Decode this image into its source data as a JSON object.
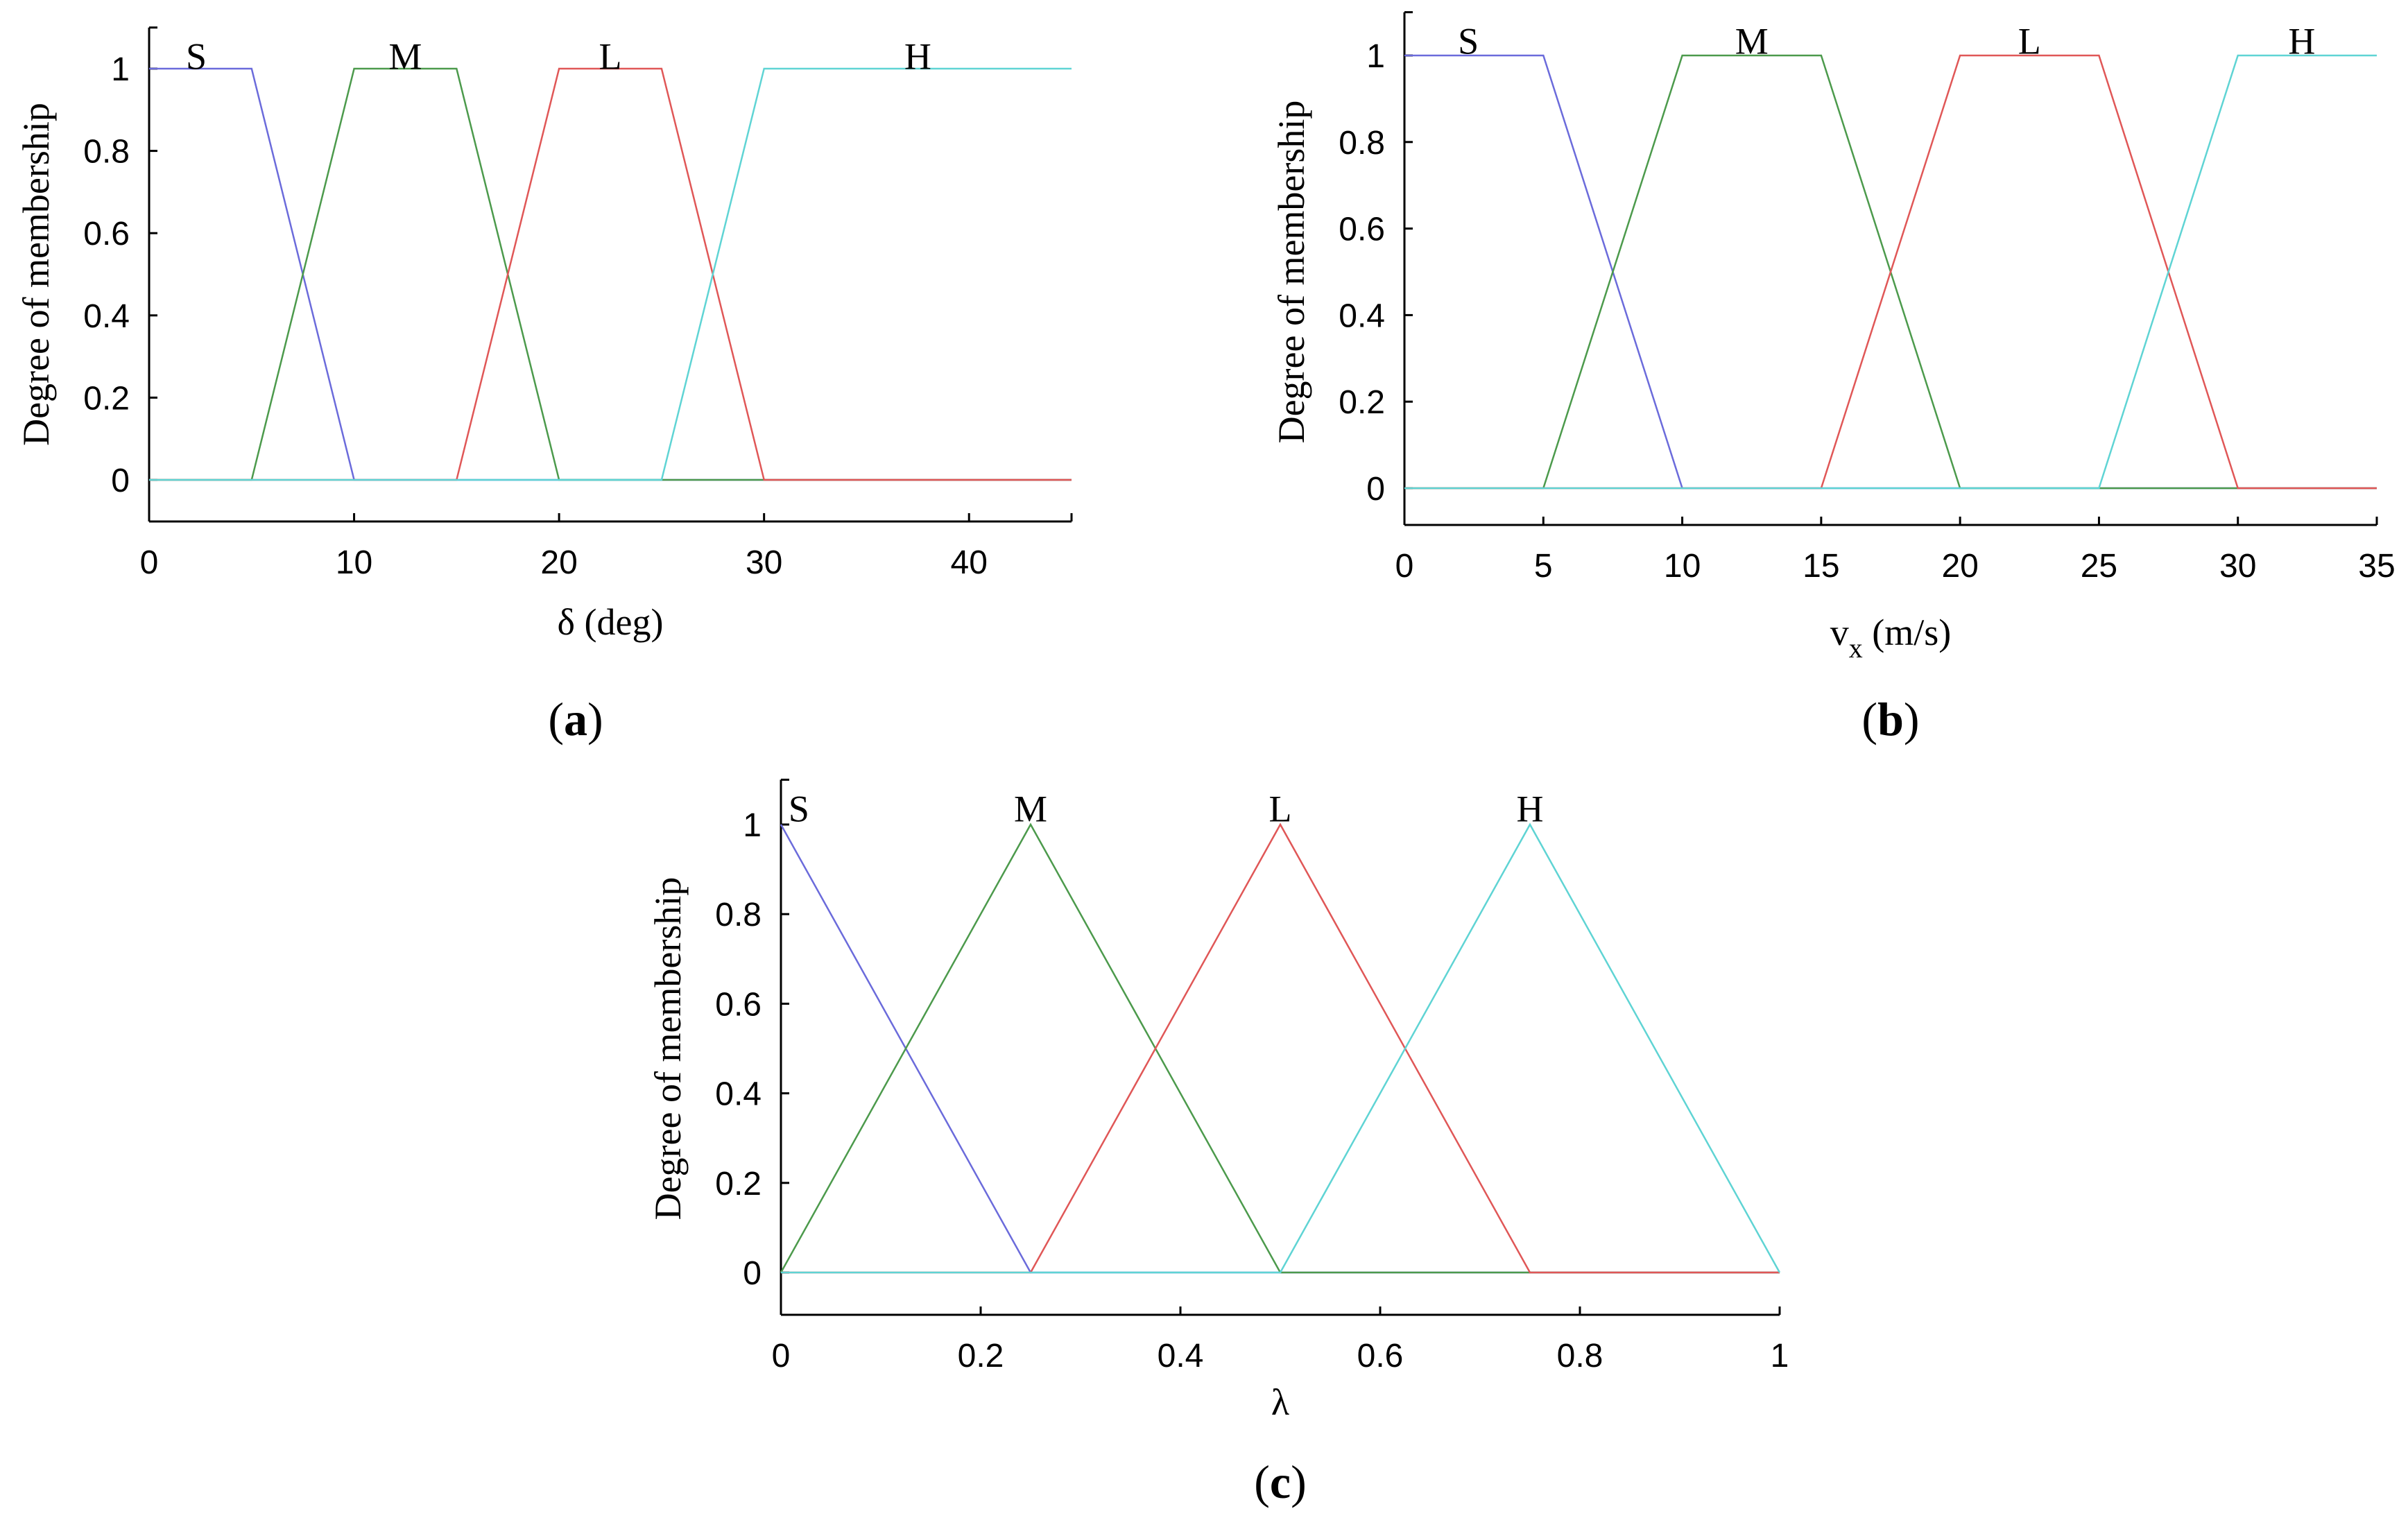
{
  "chart_data": [
    {
      "type": "line",
      "panel": "a",
      "panel_label": "a",
      "xlabel": "δ (deg)",
      "xlabel_sub": "",
      "xlabel_unit": "",
      "ylabel": "Degree of membership",
      "xlim": [
        0,
        45
      ],
      "ylim": [
        -0.1,
        1.1
      ],
      "xticks": [
        0,
        10,
        20,
        30,
        40
      ],
      "yticks": [
        0,
        0.2,
        0.4,
        0.6,
        0.8,
        1
      ],
      "series": [
        {
          "name": "S",
          "color": "#6b6bdb",
          "points": [
            [
              0,
              1
            ],
            [
              5,
              1
            ],
            [
              10,
              0
            ],
            [
              45,
              0
            ]
          ],
          "label_x": 2.3
        },
        {
          "name": "M",
          "color": "#4c9a4c",
          "points": [
            [
              0,
              0
            ],
            [
              5,
              0
            ],
            [
              10,
              1
            ],
            [
              15,
              1
            ],
            [
              20,
              0
            ],
            [
              45,
              0
            ]
          ],
          "label_x": 12.5
        },
        {
          "name": "L",
          "color": "#e05757",
          "points": [
            [
              0,
              0
            ],
            [
              15,
              0
            ],
            [
              20,
              1
            ],
            [
              25,
              1
            ],
            [
              30,
              0
            ],
            [
              45,
              0
            ]
          ],
          "label_x": 22.5
        },
        {
          "name": "H",
          "color": "#5fd4d4",
          "points": [
            [
              0,
              0
            ],
            [
              25,
              0
            ],
            [
              30,
              1
            ],
            [
              45,
              1
            ]
          ],
          "label_x": 37.5
        }
      ]
    },
    {
      "type": "line",
      "panel": "b",
      "panel_label": "b",
      "xlabel": "v",
      "xlabel_sub": "x",
      "xlabel_unit": " (m/s)",
      "ylabel": "Degree of membership",
      "xlim": [
        0,
        35
      ],
      "ylim": [
        -0.1,
        1.1
      ],
      "xticks": [
        0,
        5,
        10,
        15,
        20,
        25,
        30,
        35
      ],
      "yticks": [
        0,
        0.2,
        0.4,
        0.6,
        0.8,
        1
      ],
      "series": [
        {
          "name": "S",
          "color": "#6b6bdb",
          "points": [
            [
              0,
              1
            ],
            [
              5,
              1
            ],
            [
              10,
              0
            ],
            [
              35,
              0
            ]
          ],
          "label_x": 2.3
        },
        {
          "name": "M",
          "color": "#4c9a4c",
          "points": [
            [
              0,
              0
            ],
            [
              5,
              0
            ],
            [
              10,
              1
            ],
            [
              15,
              1
            ],
            [
              20,
              0
            ],
            [
              35,
              0
            ]
          ],
          "label_x": 12.5
        },
        {
          "name": "L",
          "color": "#e05757",
          "points": [
            [
              0,
              0
            ],
            [
              15,
              0
            ],
            [
              20,
              1
            ],
            [
              25,
              1
            ],
            [
              30,
              0
            ],
            [
              35,
              0
            ]
          ],
          "label_x": 22.5
        },
        {
          "name": "H",
          "color": "#5fd4d4",
          "points": [
            [
              0,
              0
            ],
            [
              25,
              0
            ],
            [
              30,
              1
            ],
            [
              35,
              1
            ]
          ],
          "label_x": 32.3
        }
      ]
    },
    {
      "type": "line",
      "panel": "c",
      "panel_label": "c",
      "xlabel": "λ",
      "xlabel_sub": "",
      "xlabel_unit": "",
      "ylabel": "Degree of membership",
      "xlim": [
        0,
        1
      ],
      "ylim": [
        -0.1,
        1.1
      ],
      "xticks": [
        0,
        0.2,
        0.4,
        0.6,
        0.8,
        1
      ],
      "yticks": [
        0,
        0.2,
        0.4,
        0.6,
        0.8,
        1
      ],
      "series": [
        {
          "name": "S",
          "color": "#6b6bdb",
          "points": [
            [
              0,
              1
            ],
            [
              0.25,
              0
            ],
            [
              1,
              0
            ]
          ],
          "label_x": 0.018
        },
        {
          "name": "M",
          "color": "#4c9a4c",
          "points": [
            [
              0,
              0
            ],
            [
              0.25,
              1
            ],
            [
              0.5,
              0
            ],
            [
              1,
              0
            ]
          ],
          "label_x": 0.25
        },
        {
          "name": "L",
          "color": "#e05757",
          "points": [
            [
              0,
              0
            ],
            [
              0.25,
              0
            ],
            [
              0.5,
              1
            ],
            [
              0.75,
              0
            ],
            [
              1,
              0
            ]
          ],
          "label_x": 0.5
        },
        {
          "name": "H",
          "color": "#5fd4d4",
          "points": [
            [
              0,
              0
            ],
            [
              0.5,
              0
            ],
            [
              0.75,
              1
            ],
            [
              1,
              0
            ]
          ],
          "label_x": 0.75
        }
      ]
    }
  ]
}
